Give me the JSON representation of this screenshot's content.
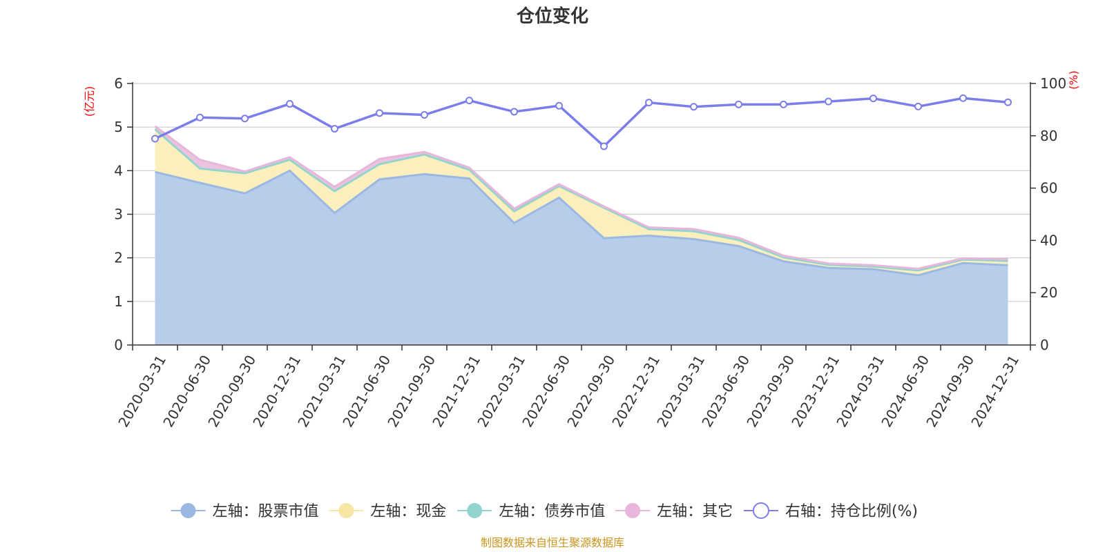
{
  "chart_data": {
    "type": "area",
    "title": "仓位变化",
    "left_axis_unit": "(亿元)",
    "right_axis_unit": "(%)",
    "categories": [
      "2020-03-31",
      "2020-06-30",
      "2020-09-30",
      "2020-12-31",
      "2021-03-31",
      "2021-06-30",
      "2021-09-30",
      "2021-12-31",
      "2022-03-31",
      "2022-06-30",
      "2022-09-30",
      "2022-12-31",
      "2023-03-31",
      "2023-06-30",
      "2023-09-30",
      "2023-12-31",
      "2024-03-31",
      "2024-06-30",
      "2024-09-30",
      "2024-12-31"
    ],
    "y_left": {
      "ylim": [
        0,
        6
      ],
      "ticks": [
        "0",
        "1",
        "2",
        "3",
        "4",
        "5",
        "6"
      ]
    },
    "y_right": {
      "ylim": [
        0,
        100
      ],
      "ticks": [
        "0",
        "20",
        "40",
        "60",
        "80",
        "100"
      ]
    },
    "stacked_series": [
      {
        "name": "左轴：股票市值",
        "color": "#9ab8e2",
        "fill": "#b8cdea",
        "values": [
          3.97,
          3.72,
          3.48,
          4.0,
          3.03,
          3.8,
          3.92,
          3.82,
          2.8,
          3.38,
          2.45,
          2.51,
          2.43,
          2.27,
          1.92,
          1.77,
          1.74,
          1.6,
          1.88,
          1.83
        ]
      },
      {
        "name": "左轴：现金",
        "color": "#f8e7a2",
        "fill": "#fbefbd",
        "values": [
          0.98,
          0.33,
          0.46,
          0.25,
          0.5,
          0.35,
          0.45,
          0.2,
          0.25,
          0.25,
          0.7,
          0.15,
          0.18,
          0.14,
          0.09,
          0.07,
          0.06,
          0.11,
          0.08,
          0.1
        ]
      },
      {
        "name": "左轴：债券市值",
        "color": "#93d3d0",
        "fill": "#a9dcd9",
        "values": [
          0,
          0,
          0,
          0,
          0,
          0,
          0,
          0,
          0.02,
          0.02,
          0,
          0,
          0,
          0,
          0,
          0,
          0,
          0,
          0,
          0
        ]
      },
      {
        "name": "左轴：其它",
        "color": "#e8b6da",
        "fill": "#ebc3df",
        "values": [
          0.07,
          0.2,
          0.04,
          0.06,
          0.1,
          0.12,
          0.06,
          0.05,
          0.06,
          0.04,
          0.03,
          0.04,
          0.05,
          0.05,
          0.04,
          0.03,
          0.03,
          0.04,
          0.03,
          0.04
        ]
      }
    ],
    "line_series": {
      "name": "右轴：持仓比例(%)",
      "color": "#7b7eea",
      "axis": "right",
      "values": [
        78.9,
        87.0,
        86.6,
        92.2,
        82.7,
        88.7,
        88.0,
        93.5,
        89.2,
        91.5,
        76.0,
        92.7,
        91.1,
        92.0,
        92.0,
        93.1,
        94.3,
        91.2,
        94.4,
        92.8
      ]
    },
    "legend_position": "bottom-center",
    "grid": true
  },
  "source_note": "制图数据来自恒生聚源数据库"
}
